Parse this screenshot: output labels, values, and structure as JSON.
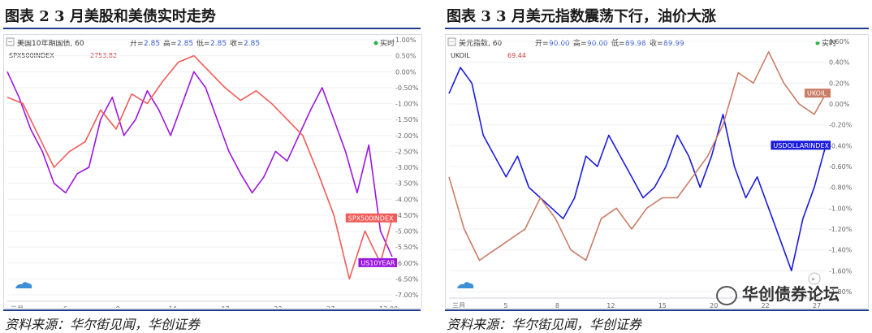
{
  "figure2": {
    "title": "图表 2   3 月美股和美债实时走势",
    "source": "资料来源：华尔街见闻，华创证券",
    "header_title": "美国10年期国债, 60",
    "quote_open_label": "开=",
    "quote_open": "2.85",
    "quote_high_label": "高=",
    "quote_high": "2.85",
    "quote_low_label": "低=",
    "quote_low": "2.85",
    "quote_close_label": "收=",
    "quote_close": "2.85",
    "realtime": "实时",
    "compare_symbol": "SPX500INDEX",
    "compare_value": "2753.82",
    "colors": {
      "us10": "#9b17e0",
      "spx": "#f25b58"
    },
    "chart_data": {
      "type": "line",
      "ylabel_right": [
        "1.00%",
        "0.50%",
        "0.00%",
        "-0.50%",
        "-1.00%",
        "-1.50%",
        "-2.00%",
        "-2.50%",
        "-3.00%",
        "-3.50%",
        "-4.00%",
        "-4.50%",
        "-5.00%",
        "-5.50%",
        "-6.00%",
        "-6.50%",
        "-7.00%"
      ],
      "ylim": [
        -7.0,
        1.0
      ],
      "x_ticks": [
        "三月",
        "6",
        "9",
        "14",
        "17",
        "22",
        "27",
        "12:00"
      ],
      "series": [
        {
          "name": "US10YEAR",
          "color": "#9b17e0",
          "x": [
            0,
            3,
            6,
            9,
            12,
            15,
            18,
            21,
            24,
            27,
            30,
            33,
            36,
            39,
            42,
            45,
            48,
            51,
            54,
            57,
            60,
            63,
            66,
            69,
            72,
            75,
            78,
            81,
            84,
            87,
            90,
            93,
            96,
            99
          ],
          "values": [
            0.0,
            -0.8,
            -1.8,
            -2.5,
            -3.5,
            -3.8,
            -3.2,
            -3.0,
            -1.5,
            -0.8,
            -2.0,
            -1.5,
            -0.6,
            -1.2,
            -2.0,
            -1.0,
            0.0,
            -0.5,
            -1.5,
            -2.5,
            -3.2,
            -3.8,
            -3.3,
            -2.5,
            -2.8,
            -2.0,
            -1.2,
            -0.5,
            -1.5,
            -2.5,
            -3.8,
            -2.3,
            -5.0,
            -5.8
          ]
        },
        {
          "name": "SPX500INDEX",
          "color": "#f25b58",
          "x": [
            0,
            4,
            8,
            12,
            16,
            20,
            24,
            28,
            32,
            36,
            40,
            44,
            48,
            52,
            56,
            60,
            64,
            68,
            72,
            76,
            80,
            84,
            88,
            92,
            96,
            99
          ],
          "values": [
            -0.8,
            -1.0,
            -2.0,
            -3.0,
            -2.5,
            -2.2,
            -1.2,
            -1.8,
            -0.7,
            -1.0,
            -0.3,
            0.3,
            0.5,
            0.0,
            -0.5,
            -0.9,
            -0.6,
            -1.0,
            -1.5,
            -2.0,
            -3.2,
            -4.5,
            -6.5,
            -5.0,
            -6.0,
            -4.6
          ]
        }
      ]
    }
  },
  "figure3": {
    "title": "图表 3   3 月美元指数震荡下行，油价大涨",
    "source": "资料来源：华尔街见闻，华创证券",
    "header_title": "美元指数, 60",
    "quote_open_label": "开=",
    "quote_open": "90.00",
    "quote_high_label": "高=",
    "quote_high": "90.00",
    "quote_low_label": "低=",
    "quote_low": "89.98",
    "quote_close_label": "收=",
    "quote_close": "89.99",
    "realtime": "实时",
    "compare_symbol": "UKOIL",
    "compare_value": "69.44",
    "colors": {
      "usd": "#1a1adf",
      "oil": "#c97c66"
    },
    "chart_data": {
      "type": "line",
      "ylabel_right": [
        "0.60%",
        "0.40%",
        "0.20%",
        "0.00%",
        "-0.20%",
        "-0.40%",
        "-0.60%",
        "-0.80%",
        "-1.00%",
        "-1.20%",
        "-1.40%",
        "-1.60%",
        "-1.80%"
      ],
      "ylim": [
        -1.8,
        0.6
      ],
      "x_ticks": [
        "三月",
        "5",
        "8",
        "12",
        "15",
        "20",
        "22",
        "27"
      ],
      "series": [
        {
          "name": "USDOLLARINDEX",
          "color": "#1a1adf",
          "x": [
            0,
            3,
            6,
            9,
            12,
            15,
            18,
            21,
            24,
            27,
            30,
            33,
            36,
            39,
            42,
            45,
            48,
            51,
            54,
            57,
            60,
            63,
            66,
            69,
            72,
            75,
            78,
            81,
            84,
            87,
            90,
            93,
            96,
            99
          ],
          "values": [
            0.1,
            0.35,
            0.2,
            -0.3,
            -0.5,
            -0.7,
            -0.5,
            -0.8,
            -0.9,
            -1.0,
            -1.1,
            -0.9,
            -0.5,
            -0.6,
            -0.3,
            -0.5,
            -0.7,
            -0.9,
            -0.8,
            -0.6,
            -0.3,
            -0.5,
            -0.8,
            -0.5,
            -0.1,
            -0.6,
            -0.9,
            -0.7,
            -1.0,
            -1.3,
            -1.6,
            -1.1,
            -0.8,
            -0.4
          ]
        },
        {
          "name": "UKOIL",
          "color": "#c97c66",
          "x": [
            0,
            4,
            8,
            12,
            16,
            20,
            24,
            28,
            32,
            36,
            40,
            44,
            48,
            52,
            56,
            60,
            64,
            68,
            72,
            76,
            80,
            84,
            88,
            92,
            96,
            99
          ],
          "values": [
            -0.7,
            -1.2,
            -1.5,
            -1.4,
            -1.3,
            -1.2,
            -0.9,
            -1.1,
            -1.4,
            -1.5,
            -1.1,
            -1.0,
            -1.2,
            -1.0,
            -0.9,
            -0.9,
            -0.7,
            -0.5,
            -0.2,
            0.3,
            0.2,
            0.5,
            0.2,
            0.0,
            -0.1,
            0.1
          ]
        }
      ]
    }
  },
  "watermark": "华创债券论坛"
}
